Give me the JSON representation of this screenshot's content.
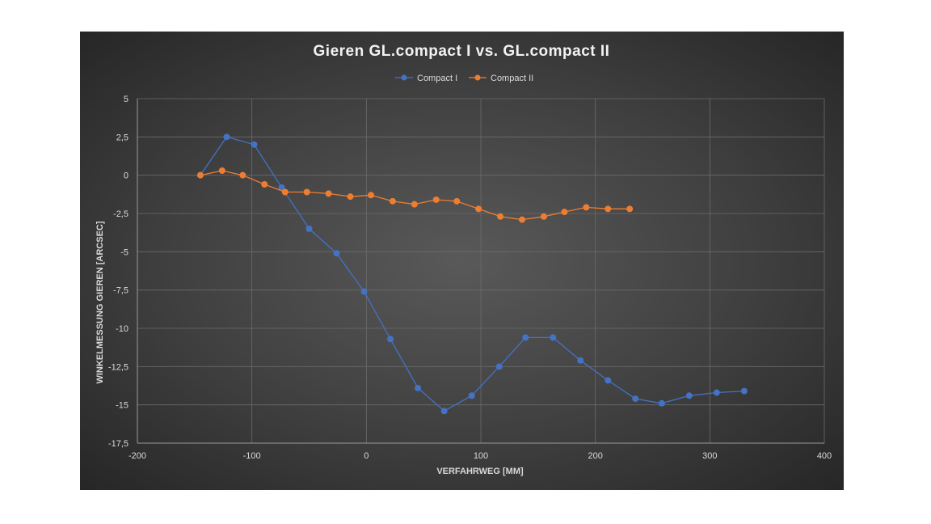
{
  "chart_data": {
    "type": "scatter",
    "title": "Gieren  GL.compact  I vs. GL.compact  II",
    "xlabel": "VERFAHRWEG [MM]",
    "ylabel": "WINKELMESSUNG GIEREN [ARCSEC]",
    "xlim": [
      -200,
      400
    ],
    "ylim": [
      -17.5,
      5
    ],
    "x_ticks": [
      "-200",
      "-100",
      "0",
      "100",
      "200",
      "300",
      "400"
    ],
    "y_ticks": [
      "5",
      "2,5",
      "0",
      "-2,5",
      "-5",
      "-7,5",
      "-10",
      "-12,5",
      "-15",
      "-17,5"
    ],
    "grid": true,
    "legend_position": "top",
    "series": [
      {
        "name": "Compact I",
        "color": "#4472c4",
        "x": [
          -145,
          -122,
          -98,
          -74,
          -50,
          -26,
          -2,
          21,
          45,
          68,
          92,
          116,
          139,
          163,
          187,
          211,
          235,
          258,
          282,
          306,
          330
        ],
        "y": [
          0,
          2.5,
          2,
          -0.8,
          -3.5,
          -5.1,
          -7.6,
          -10.7,
          -13.9,
          -15.4,
          -14.4,
          -12.5,
          -10.6,
          -10.6,
          -12.1,
          -13.4,
          -14.6,
          -14.9,
          -14.4,
          -14.2,
          -14.1
        ]
      },
      {
        "name": "Compact II",
        "color": "#ed7d31",
        "x": [
          -145,
          -126,
          -108,
          -89,
          -71,
          -52,
          -33,
          -14,
          4,
          23,
          42,
          61,
          79,
          98,
          117,
          136,
          155,
          173,
          192,
          211,
          230
        ],
        "y": [
          0,
          0.3,
          0,
          -0.6,
          -1.1,
          -1.1,
          -1.2,
          -1.4,
          -1.3,
          -1.7,
          -1.9,
          -1.6,
          -1.7,
          -2.2,
          -2.7,
          -2.9,
          -2.7,
          -2.4,
          -2.1,
          -2.2,
          -2.2
        ]
      }
    ]
  }
}
